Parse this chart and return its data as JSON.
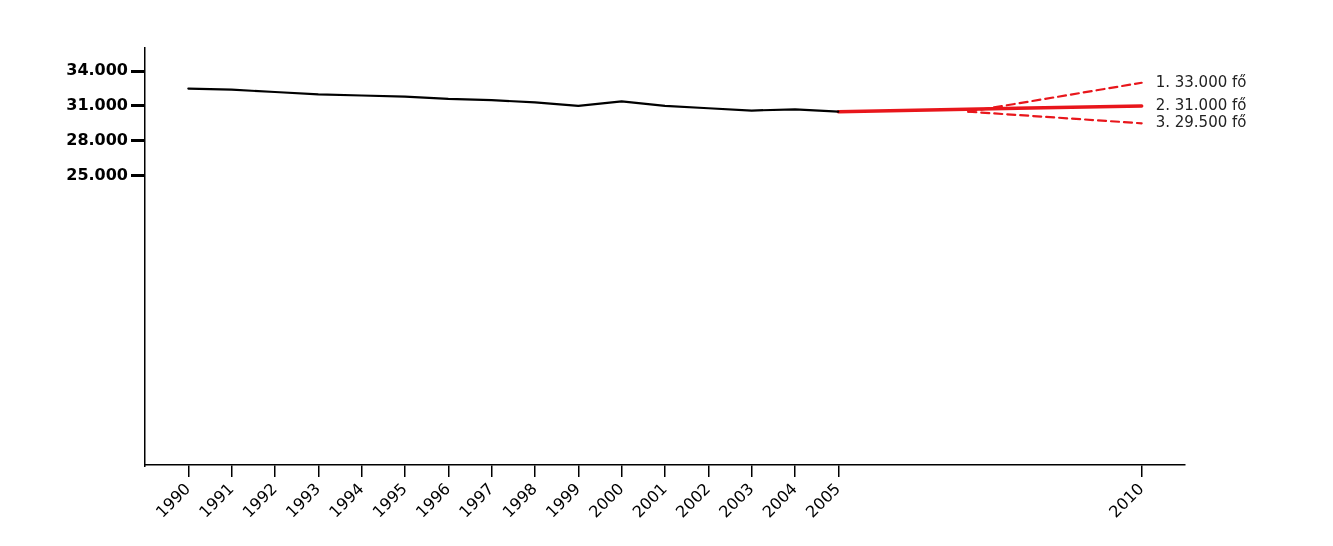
{
  "chart_data": {
    "type": "line",
    "categories": [
      null,
      "1990",
      "1991",
      "1992",
      "1993",
      "1994",
      "1995",
      "1996",
      "1997",
      "1998",
      "1999",
      "2000",
      "2001",
      "2002",
      "2003",
      "2004",
      "2005",
      null,
      null,
      null,
      null,
      null,
      null,
      "2010",
      null
    ],
    "series": [
      {
        "color": "#000000",
        "values": [
          null,
          32500,
          32400,
          32200,
          32000,
          31900,
          31800,
          31600,
          31500,
          31300,
          31000,
          31400,
          31000,
          30800,
          30600,
          30700,
          30500,
          null,
          null,
          null,
          null,
          null,
          null,
          null,
          null
        ]
      },
      {
        "color": "#e8161b",
        "line_style": "dashed",
        "values": [
          null,
          null,
          null,
          null,
          null,
          null,
          null,
          null,
          null,
          null,
          null,
          null,
          null,
          null,
          null,
          null,
          null,
          null,
          null,
          30500,
          null,
          null,
          null,
          33000,
          null
        ]
      },
      {
        "color": "#e8161b",
        "line_style": "solid",
        "values": [
          null,
          null,
          null,
          null,
          null,
          null,
          null,
          null,
          null,
          null,
          null,
          null,
          null,
          null,
          null,
          null,
          30500,
          null,
          null,
          null,
          null,
          null,
          null,
          31000,
          null
        ]
      },
      {
        "color": "#e8161b",
        "line_style": "dashed",
        "values": [
          null,
          null,
          null,
          null,
          null,
          null,
          null,
          null,
          null,
          null,
          null,
          null,
          null,
          null,
          null,
          null,
          null,
          null,
          null,
          30500,
          null,
          null,
          null,
          29500,
          null
        ]
      }
    ],
    "ylim": [
      0,
      36000
    ],
    "yticks": [
      {
        "value": 25000,
        "label": "25.000"
      },
      {
        "value": 28000,
        "label": "28.000"
      },
      {
        "value": 31000,
        "label": "31.000"
      },
      {
        "value": 34000,
        "label": "34.000"
      }
    ],
    "grid": false,
    "legend": false,
    "marker": "none",
    "annotations": [
      {
        "text": "1. 33.000 fő",
        "x": "2010",
        "y": 33000
      },
      {
        "text": "2. 31.000 fő",
        "x": "2010",
        "y": 31000
      },
      {
        "text": "3. 29.500 fő",
        "x": "2010",
        "y": 29500
      }
    ]
  }
}
